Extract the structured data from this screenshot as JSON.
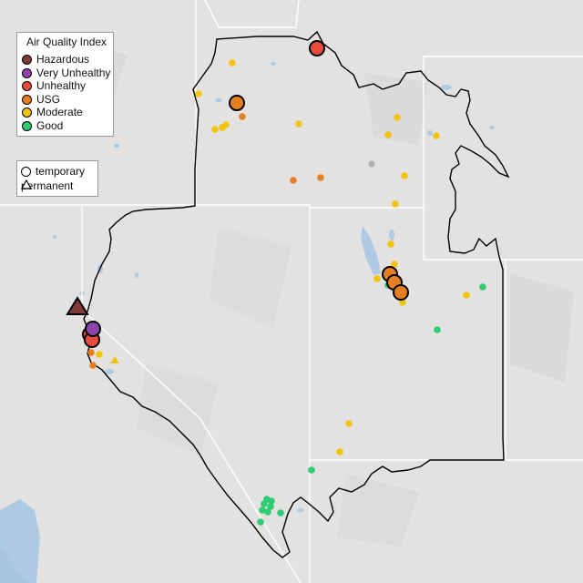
{
  "map": {
    "aqi_legend": {
      "title": "Air Quality Index",
      "items": [
        {
          "label": "Hazardous",
          "color": "#7e3b37"
        },
        {
          "label": "Very Unhealthy",
          "color": "#8e44ad"
        },
        {
          "label": "Unhealthy",
          "color": "#e74c3c"
        },
        {
          "label": "USG",
          "color": "#e67e22"
        },
        {
          "label": "Moderate",
          "color": "#f1c40f"
        },
        {
          "label": "Good",
          "color": "#2ecc71"
        }
      ]
    },
    "type_legend": {
      "items": [
        {
          "label": "temporary",
          "shape": "circle"
        },
        {
          "label": "permanent",
          "shape": "triangle"
        }
      ]
    },
    "colors": {
      "land": "#e4e2e0",
      "water": "#aecbe3",
      "border": "#000000",
      "state_line": "#ffffff",
      "no_data": "#b0b0b0"
    },
    "monitors_summary": {
      "hazardous_permanent": 1,
      "very_unhealthy_temporary": 1,
      "unhealthy_temporary": 3,
      "usg_temporary_large": 4
    }
  }
}
